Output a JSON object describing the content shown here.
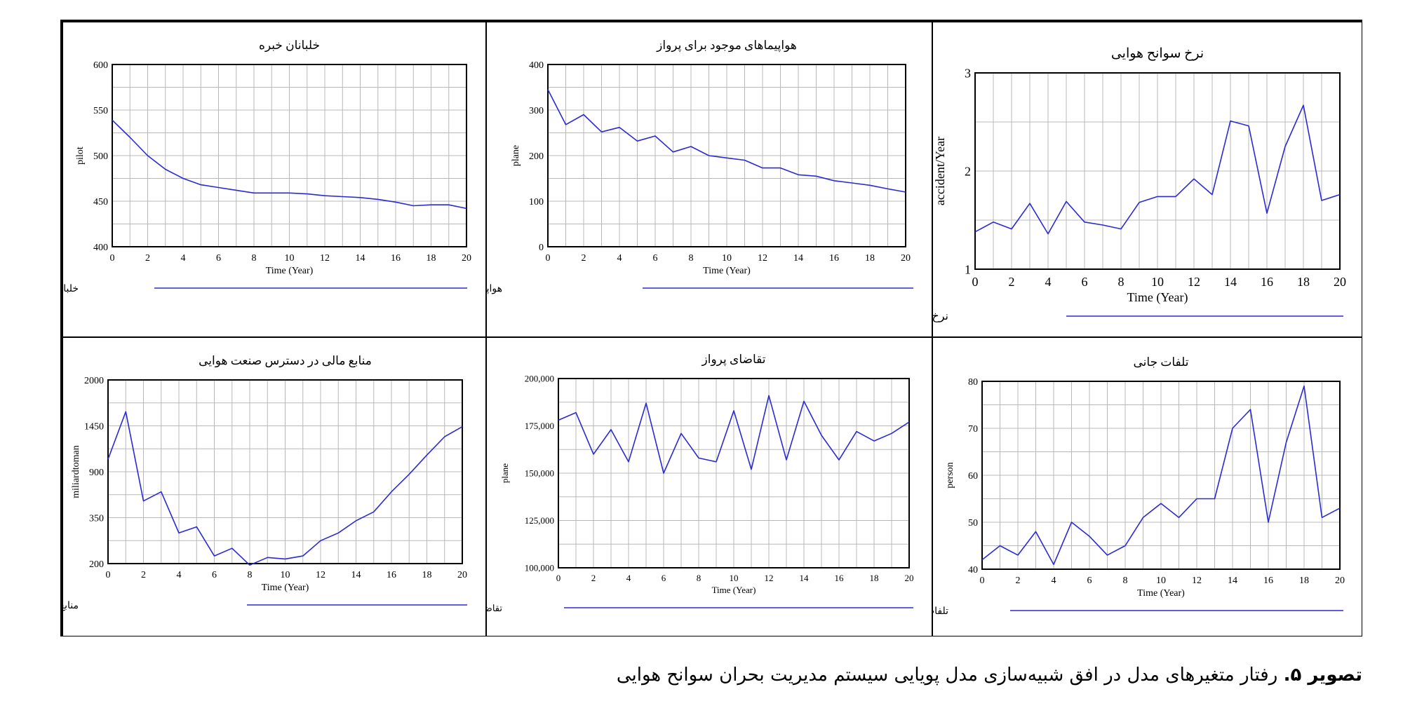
{
  "figure": {
    "caption_bold": "تصویر ۵.",
    "caption_text": " رفتار متغیرهای مدل در افق شبیه‌سازی مدل پویایی سیستم مدیریت بحران سوانح هوایی"
  },
  "chart_data": [
    {
      "id": "pilots",
      "type": "line",
      "title": "خلبانان خبره",
      "xlabel": "Time (Year)",
      "ylabel": "pilot",
      "xlim": [
        0,
        20
      ],
      "ylim": [
        400,
        600
      ],
      "xticks": [
        0,
        2,
        4,
        6,
        8,
        10,
        12,
        14,
        16,
        18,
        20
      ],
      "yticks": [
        "400",
        "450",
        "500",
        "550",
        "600"
      ],
      "grid": true,
      "legend": "bottom",
      "series": [
        {
          "name": "خلبانان خبره : Base",
          "x": [
            0,
            1,
            2,
            3,
            4,
            5,
            6,
            7,
            8,
            9,
            10,
            11,
            12,
            13,
            14,
            15,
            16,
            17,
            18,
            19,
            20
          ],
          "values": [
            539,
            520,
            500,
            485,
            475,
            468,
            465,
            462,
            459,
            459,
            459,
            458,
            456,
            455,
            454,
            452,
            449,
            445,
            446,
            446,
            442
          ]
        }
      ]
    },
    {
      "id": "planes",
      "type": "line",
      "title": "هواپیماهای موجود برای پرواز",
      "xlabel": "Time (Year)",
      "ylabel": "plane",
      "xlim": [
        0,
        20
      ],
      "ylim": [
        0,
        400
      ],
      "xticks": [
        0,
        2,
        4,
        6,
        8,
        10,
        12,
        14,
        16,
        18,
        20
      ],
      "yticks": [
        "0",
        "100",
        "200",
        "300",
        "400"
      ],
      "grid": true,
      "legend": "bottom",
      "series": [
        {
          "name": "هواپیماهای موجود برای پرواز : Base",
          "x": [
            0,
            1,
            2,
            3,
            4,
            5,
            6,
            7,
            8,
            9,
            10,
            11,
            12,
            13,
            14,
            15,
            16,
            17,
            18,
            19,
            20
          ],
          "values": [
            345,
            268,
            290,
            252,
            262,
            232,
            243,
            208,
            220,
            200,
            195,
            190,
            173,
            173,
            158,
            155,
            145,
            140,
            135,
            127,
            120
          ]
        }
      ]
    },
    {
      "id": "accident_rate",
      "type": "line",
      "title": "نرخ سوانح هوایی",
      "xlabel": "Time (Year)",
      "ylabel": "accident/Year",
      "xlim": [
        0,
        20
      ],
      "ylim": [
        1,
        3
      ],
      "xticks": [
        0,
        2,
        4,
        6,
        8,
        10,
        12,
        14,
        16,
        18,
        20
      ],
      "yticks": [
        "1",
        "2",
        "3"
      ],
      "grid": true,
      "legend": "bottom",
      "series": [
        {
          "name": "نرخ سوانح هوایی : Base",
          "x": [
            0,
            1,
            2,
            3,
            4,
            5,
            6,
            7,
            8,
            9,
            10,
            11,
            12,
            13,
            14,
            15,
            16,
            17,
            18,
            19,
            20
          ],
          "values": [
            1.38,
            1.48,
            1.41,
            1.67,
            1.36,
            1.69,
            1.48,
            1.45,
            1.41,
            1.68,
            1.74,
            1.74,
            1.92,
            1.76,
            2.51,
            2.46,
            1.57,
            2.25,
            2.67,
            1.7,
            1.76
          ]
        }
      ]
    },
    {
      "id": "financial",
      "type": "line",
      "title": "منابع مالی در دسترس صنعت هوایی",
      "xlabel": "Time (Year)",
      "ylabel": "miliardtoman",
      "xlim": [
        0,
        20
      ],
      "ylim": [
        200,
        2000
      ],
      "yscale": "nonuniform",
      "xticks": [
        0,
        2,
        4,
        6,
        8,
        10,
        12,
        14,
        16,
        18,
        20
      ],
      "yticks": [
        "200",
        "350",
        "900",
        "1450",
        "2000"
      ],
      "grid": true,
      "legend": "bottom",
      "series": [
        {
          "name": "منابع مالی در دسترس صنعت هوایی : Base",
          "x": [
            0,
            1,
            2,
            3,
            4,
            5,
            6,
            7,
            8,
            9,
            10,
            11,
            12,
            13,
            14,
            15,
            16,
            17,
            18,
            19,
            20
          ],
          "values": [
            1050,
            1620,
            550,
            660,
            300,
            320,
            225,
            250,
            195,
            220,
            215,
            225,
            275,
            300,
            340,
            420,
            660,
            870,
            1100,
            1320,
            1440
          ]
        }
      ]
    },
    {
      "id": "flight_demand",
      "type": "line",
      "title": "تقاضای پرواز",
      "xlabel": "Time (Year)",
      "ylabel": "plane",
      "xlim": [
        0,
        20
      ],
      "ylim": [
        100000,
        200000
      ],
      "xticks": [
        0,
        2,
        4,
        6,
        8,
        10,
        12,
        14,
        16,
        18,
        20
      ],
      "yticks": [
        "100,000",
        "125,000",
        "150,000",
        "175,000",
        "200,000"
      ],
      "grid": true,
      "legend": "bottom",
      "series": [
        {
          "name": "تقاضای پرواز : Base",
          "x": [
            0,
            1,
            2,
            3,
            4,
            5,
            6,
            7,
            8,
            9,
            10,
            11,
            12,
            13,
            14,
            15,
            16,
            17,
            18,
            19,
            20
          ],
          "values": [
            178000,
            182000,
            160000,
            173000,
            156000,
            187000,
            150000,
            171000,
            158000,
            156000,
            183000,
            152000,
            191000,
            157000,
            188000,
            170000,
            157000,
            172000,
            167000,
            171000,
            177000
          ]
        }
      ]
    },
    {
      "id": "fatalities",
      "type": "line",
      "title": "تلفات جانی",
      "xlabel": "Time (Year)",
      "ylabel": "person",
      "xlim": [
        0,
        20
      ],
      "ylim": [
        40,
        80
      ],
      "xticks": [
        0,
        2,
        4,
        6,
        8,
        10,
        12,
        14,
        16,
        18,
        20
      ],
      "yticks": [
        "40",
        "50",
        "60",
        "70",
        "80"
      ],
      "grid": true,
      "legend": "bottom",
      "series": [
        {
          "name": "تلفات جانی : Base",
          "x": [
            0,
            1,
            2,
            3,
            4,
            5,
            6,
            7,
            8,
            9,
            10,
            11,
            12,
            13,
            14,
            15,
            16,
            17,
            18,
            19,
            20
          ],
          "values": [
            42,
            45,
            43,
            48,
            41,
            50,
            47,
            43,
            45,
            51,
            54,
            51,
            55,
            55,
            70,
            74,
            50,
            67,
            79,
            51,
            53
          ]
        }
      ]
    }
  ]
}
